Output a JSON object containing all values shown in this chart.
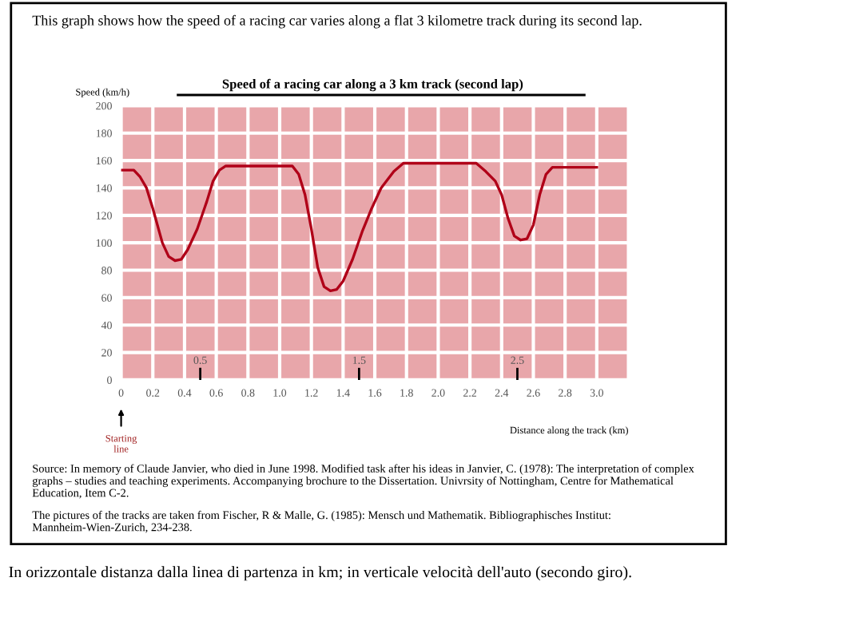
{
  "chart_data": {
    "type": "line",
    "title": "Speed of a racing car along a 3 km track (second lap)",
    "xlabel": "Distance along the track (km)",
    "ylabel": "Speed (km/h)",
    "x": [
      0,
      0.08,
      0.12,
      0.16,
      0.2,
      0.26,
      0.3,
      0.34,
      0.38,
      0.42,
      0.48,
      0.54,
      0.58,
      0.62,
      0.66,
      1.08,
      1.12,
      1.16,
      1.2,
      1.24,
      1.28,
      1.32,
      1.36,
      1.4,
      1.46,
      1.52,
      1.58,
      1.64,
      1.72,
      1.78,
      2.24,
      2.3,
      2.36,
      2.4,
      2.44,
      2.48,
      2.52,
      2.56,
      2.6,
      2.64,
      2.68,
      2.72,
      3.0
    ],
    "series": [
      {
        "color": "#b00018",
        "values": [
          153,
          153,
          148,
          140,
          125,
          100,
          90,
          87,
          88,
          95,
          110,
          130,
          145,
          153,
          156,
          156,
          150,
          135,
          110,
          82,
          68,
          65,
          66,
          72,
          88,
          108,
          125,
          140,
          152,
          158,
          158,
          152,
          145,
          135,
          118,
          105,
          102,
          103,
          113,
          135,
          150,
          155,
          155
        ]
      }
    ],
    "xlim": [
      0,
      3.2
    ],
    "ylim": [
      0,
      200
    ],
    "xticks": [
      0,
      0.2,
      0.4,
      0.6,
      0.8,
      "1.0",
      1.2,
      1.4,
      1.6,
      1.8,
      "2.0",
      2.2,
      2.4,
      2.6,
      2.8,
      "3.0",
      {
        "value": 3.2,
        "label": null
      }
    ],
    "yticks": [
      0,
      20,
      40,
      60,
      80,
      100,
      120,
      140,
      160,
      180,
      200
    ],
    "grid": true,
    "marker": "none",
    "line_style": "solid",
    "annotations": [
      "This graph shows how the speed of a racing car varies along a flat 3 kilometre track during its second lap.",
      "Source: In memory of Claude Janvier, who died in June 1998. Modified task after his ideas in Janvier, C. (1978): The interpretation of complex graphs – studies and teaching experiments. Accompanying brochure to the Dissertation. Univrsity of Nottingham, Centre for Mathematical Education, Item C-2.",
      "The pictures of the tracks are taken from Fischer, R & Malle, G. (1985): Mensch und Mathematik. Bibliographisches Institut: Mannheim-Wien-Zurich, 234-238.",
      "In orizzontale distanza dalla linea di partenza in km; in verticale velocità dell'auto (secondo giro).",
      "0.5",
      "1.5",
      "2.5",
      "Starting line"
    ]
  }
}
